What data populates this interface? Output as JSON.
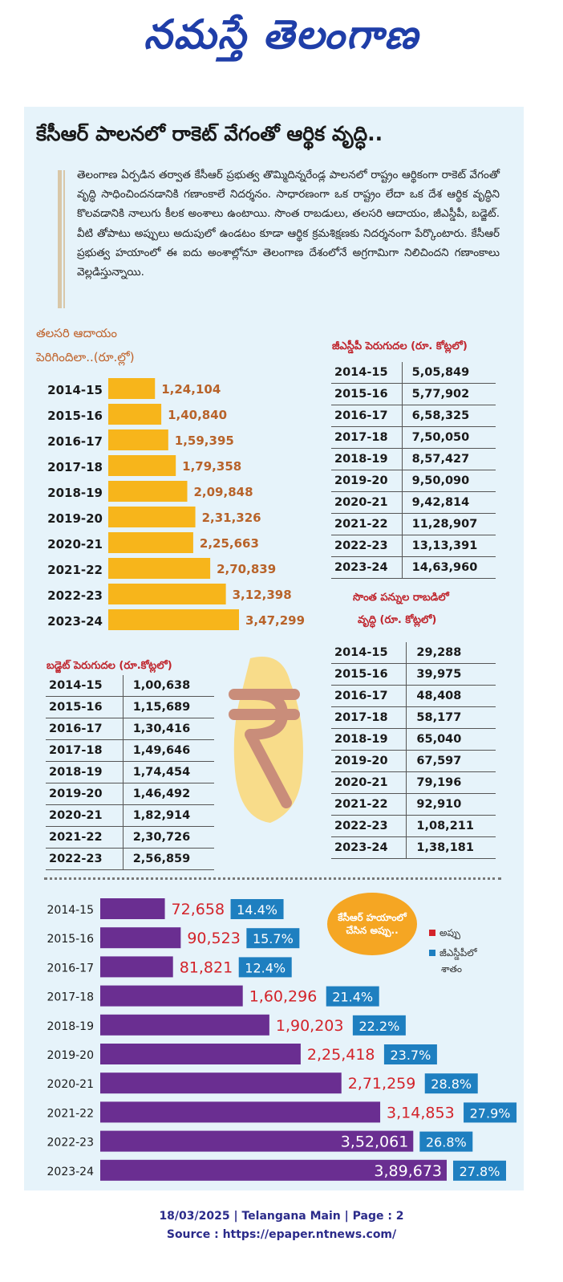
{
  "masthead": {
    "text": "నమస్తే తెలంగాణ",
    "color": "#1f3ea8"
  },
  "headline": "కేసీఆర్ పాలనలో రాకెట్ వేగంతో ఆర్థిక వృద్ధి..",
  "intro": "తెలంగాణ ఏర్పడిన తర్వాత కేసీఆర్ ప్రభుత్వ తొమ్మిదిన్నరేండ్ల పాలనలో రాష్ట్రం ఆర్థికంగా రాకెట్ వేగంతో వృద్ధి సాధించిందనడానికి గణాంకాలే నిదర్శనం. సాధారణంగా ఒక రాష్ట్రం లేదా ఒక దేశ ఆర్థిక వృద్ధిని కొలవడానికి నాలుగు కీలక అంశాలు ఉంటాయి. సొంత రాబడులు, తలసరి ఆదాయం, జీఎస్డీపీ, బడ్జెట్. వీటి తోపాటు అప్పులు అదుపులో ఉండటం కూడా ఆర్థిక క్రమశిక్షణకు నిదర్శనంగా పేర్కొంటారు. కేసీఆర్ ప్రభుత్వ హయాంలో ఈ ఐదు అంశాల్లోనూ తెలంగాణ దేశంలోనే అగ్రగామిగా నిలిచిందని గణాంకాలు వెల్లడిస్తున్నాయి.",
  "colors": {
    "panel": "#e6f3fa",
    "orange_bar": "#f7b51b",
    "orange_text": "#b8632a",
    "purple_bar": "#6a2e91",
    "debt_red": "#d3232a",
    "pct_blue": "#1e7fc0"
  },
  "chart_data": [
    {
      "type": "bar",
      "title_line1": "తలసరి ఆదాయం",
      "title_line2": "పెరిగిందిలా..(రూ.ల్లో)",
      "categories": [
        "2014-15",
        "2015-16",
        "2016-17",
        "2017-18",
        "2018-19",
        "2019-20",
        "2020-21",
        "2021-22",
        "2022-23",
        "2023-24"
      ],
      "values": [
        124104,
        140840,
        159395,
        179358,
        209848,
        231326,
        225663,
        270839,
        312398,
        347299
      ],
      "labels": [
        "1,24,104",
        "1,40,840",
        "1,59,395",
        "1,79,358",
        "2,09,848",
        "2,31,326",
        "2,25,663",
        "2,70,839",
        "3,12,398",
        "3,47,299"
      ],
      "orientation": "horizontal"
    },
    {
      "type": "table",
      "title": "జీఎస్డీపీ పెరుగుదల (రూ. కోట్లలో)",
      "rows": [
        [
          "2014-15",
          "5,05,849"
        ],
        [
          "2015-16",
          "5,77,902"
        ],
        [
          "2016-17",
          "6,58,325"
        ],
        [
          "2017-18",
          "7,50,050"
        ],
        [
          "2018-19",
          "8,57,427"
        ],
        [
          "2019-20",
          "9,50,090"
        ],
        [
          "2020-21",
          "9,42,814"
        ],
        [
          "2021-22",
          "11,28,907"
        ],
        [
          "2022-23",
          "13,13,391"
        ],
        [
          "2023-24",
          "14,63,960"
        ]
      ]
    },
    {
      "type": "table",
      "title_line1": "సొంత పన్నుల రాబడిలో",
      "title_line2": "వృద్ధి (రూ. కోట్లలో)",
      "rows": [
        [
          "2014-15",
          "29,288"
        ],
        [
          "2015-16",
          "39,975"
        ],
        [
          "2016-17",
          "48,408"
        ],
        [
          "2017-18",
          "58,177"
        ],
        [
          "2018-19",
          "65,040"
        ],
        [
          "2019-20",
          "67,597"
        ],
        [
          "2020-21",
          "79,196"
        ],
        [
          "2021-22",
          "92,910"
        ],
        [
          "2022-23",
          "1,08,211"
        ],
        [
          "2023-24",
          "1,38,181"
        ]
      ]
    },
    {
      "type": "table",
      "title": "బడ్జెట్ పెరుగుదల (రూ.కోట్లలో)",
      "rows": [
        [
          "2014-15",
          "1,00,638"
        ],
        [
          "2015-16",
          "1,15,689"
        ],
        [
          "2016-17",
          "1,30,416"
        ],
        [
          "2017-18",
          "1,49,646"
        ],
        [
          "2018-19",
          "1,74,454"
        ],
        [
          "2019-20",
          "1,46,492"
        ],
        [
          "2020-21",
          "1,82,914"
        ],
        [
          "2021-22",
          "2,30,726"
        ],
        [
          "2022-23",
          "2,56,859"
        ]
      ]
    },
    {
      "type": "bar",
      "orientation": "horizontal",
      "categories": [
        "2014-15",
        "2015-16",
        "2016-17",
        "2017-18",
        "2018-19",
        "2019-20",
        "2020-21",
        "2021-22",
        "2022-23",
        "2023-24"
      ],
      "series": [
        {
          "name": "అప్పు",
          "values": [
            72658,
            90523,
            81821,
            160296,
            190203,
            225418,
            271259,
            314853,
            352061,
            389673
          ],
          "labels": [
            "72,658",
            "90,523",
            "81,821",
            "1,60,296",
            "1,90,203",
            "2,25,418",
            "2,71,259",
            "3,14,853",
            "3,52,061",
            "3,89,673"
          ]
        },
        {
          "name": "జీఎస్డీపీలో శాతం",
          "values": [
            14.4,
            15.7,
            12.4,
            21.4,
            22.2,
            23.7,
            28.8,
            27.9,
            26.8,
            27.8
          ],
          "labels": [
            "14.4%",
            "15.7%",
            "12.4%",
            "21.4%",
            "22.2%",
            "23.7%",
            "28.8%",
            "27.9%",
            "26.8%",
            "27.8%"
          ]
        }
      ],
      "callout": "కేసీఆర్ హయాంలో చేసిన అప్పు..",
      "legend_pct_line1": "జీఎస్డీపీలో",
      "legend_pct_line2": "శాతం"
    }
  ],
  "footer": {
    "line1": "18/03/2025 | Telangana Main | Page : 2",
    "line2": "Source : https://epaper.ntnews.com/"
  }
}
